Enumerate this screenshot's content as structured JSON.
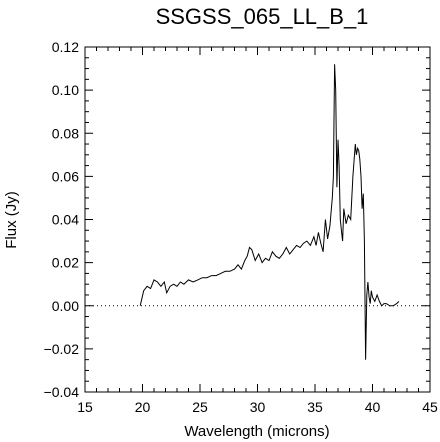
{
  "chart_data": {
    "type": "line",
    "title": "SSGSS_065_LL_B_1",
    "xlabel": "Wavelength (microns)",
    "ylabel": "Flux (Jy)",
    "xlim": [
      15,
      45
    ],
    "ylim": [
      -0.04,
      0.12
    ],
    "x_ticks": [
      "15",
      "20",
      "25",
      "30",
      "35",
      "40",
      "45"
    ],
    "y_ticks": [
      "−0.04",
      "−0.02",
      "0.00",
      "0.02",
      "0.04",
      "0.06",
      "0.08",
      "0.10",
      "0.12"
    ],
    "zero_line": {
      "y": 0.0,
      "style": "dotted"
    },
    "grid": false,
    "series": [
      {
        "x": [
          19.8,
          20.1,
          20.4,
          20.7,
          21.0,
          21.3,
          21.6,
          21.9,
          22.1,
          22.4,
          22.7,
          23.0,
          23.3,
          23.6,
          24.0,
          24.4,
          24.8,
          25.2,
          25.6,
          26.0,
          26.4,
          26.8,
          27.2,
          27.6,
          28.0,
          28.3,
          28.6,
          28.9,
          29.1,
          29.3,
          29.5,
          29.8,
          30.1,
          30.4,
          30.7,
          31.0,
          31.3,
          31.6,
          31.9,
          32.2,
          32.5,
          32.8,
          33.1,
          33.4,
          33.7,
          34.0,
          34.3,
          34.6,
          34.9,
          35.1,
          35.3,
          35.5,
          35.7,
          35.9,
          36.1,
          36.3,
          36.5,
          36.6,
          36.7,
          36.8,
          36.9,
          37.0,
          37.1,
          37.2,
          37.3,
          37.4,
          37.5,
          37.7,
          37.9,
          38.1,
          38.3,
          38.5,
          38.6,
          38.7,
          38.8,
          38.9,
          39.0,
          39.1,
          39.2,
          39.3,
          39.4,
          39.5,
          39.6,
          39.7,
          39.8,
          39.9,
          40.0,
          40.2,
          40.4,
          40.6,
          40.8,
          41.0,
          41.2,
          41.5,
          41.8,
          42.1,
          42.3
        ],
        "y": [
          0.0,
          0.007,
          0.009,
          0.008,
          0.012,
          0.011,
          0.009,
          0.011,
          0.006,
          0.009,
          0.01,
          0.009,
          0.011,
          0.01,
          0.012,
          0.011,
          0.012,
          0.013,
          0.013,
          0.014,
          0.014,
          0.015,
          0.016,
          0.016,
          0.017,
          0.019,
          0.017,
          0.021,
          0.023,
          0.027,
          0.026,
          0.021,
          0.024,
          0.02,
          0.022,
          0.021,
          0.025,
          0.023,
          0.022,
          0.024,
          0.027,
          0.024,
          0.026,
          0.028,
          0.027,
          0.029,
          0.03,
          0.028,
          0.032,
          0.028,
          0.034,
          0.029,
          0.025,
          0.04,
          0.031,
          0.037,
          0.05,
          0.06,
          0.112,
          0.1,
          0.055,
          0.077,
          0.065,
          0.04,
          0.035,
          0.03,
          0.045,
          0.038,
          0.042,
          0.04,
          0.06,
          0.075,
          0.07,
          0.073,
          0.072,
          0.068,
          0.06,
          0.045,
          0.052,
          0.03,
          -0.025,
          0.005,
          0.011,
          0.004,
          0.001,
          0.007,
          0.004,
          0.002,
          0.005,
          0.002,
          0.0,
          0.001,
          0.001,
          0.0,
          0.0,
          0.001,
          0.002
        ]
      }
    ]
  }
}
